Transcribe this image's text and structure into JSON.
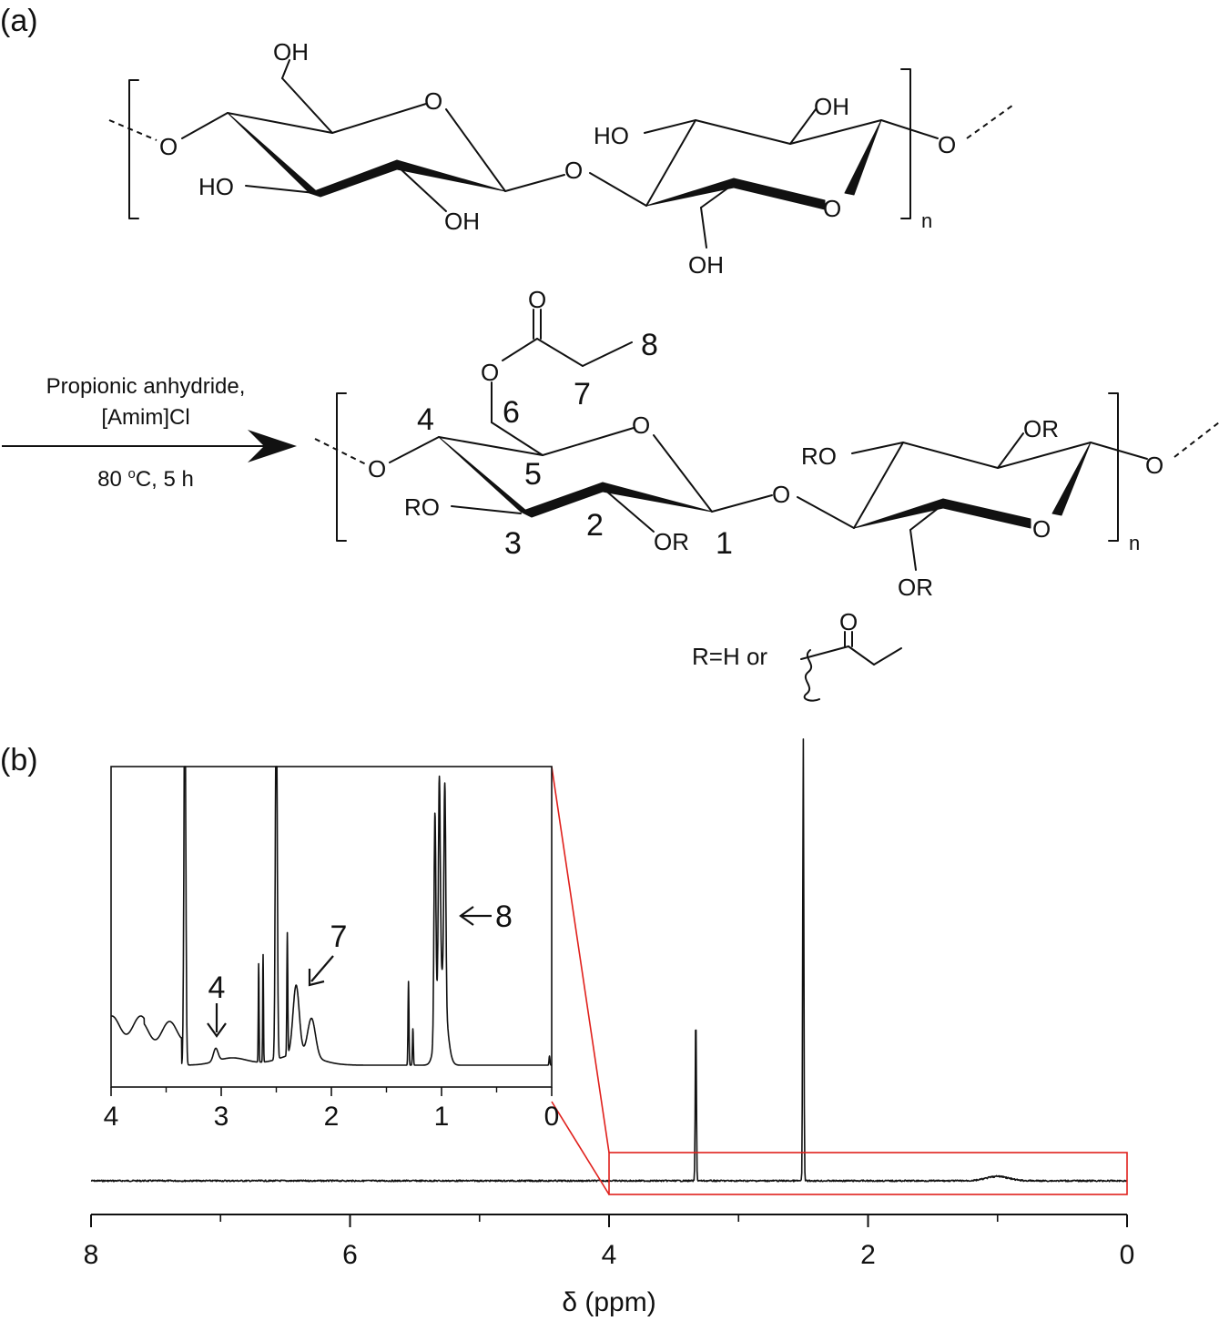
{
  "panel_a": {
    "label": "(a)",
    "reagents": {
      "line1": "Propionic anhydride,",
      "line2": "[Amim]Cl",
      "line3_pre": "80 ",
      "line3_sup": "o",
      "line3_post": "C, 5 h"
    },
    "cellulose_labels": {
      "oh": "OH",
      "ho": "HO",
      "o": "O",
      "n": "n"
    },
    "product_labels": {
      "or": "OR",
      "ro": "RO",
      "o": "O",
      "n": "n",
      "carbon_numbers": [
        "1",
        "2",
        "3",
        "4",
        "5",
        "6",
        "7",
        "8"
      ]
    },
    "r_definition": {
      "text": "R=H or",
      "o": "O"
    }
  },
  "panel_b": {
    "label": "(b)"
  },
  "chart_data": [
    {
      "type": "line",
      "id": "main_spectrum",
      "xlabel": "δ (ppm)",
      "xlim": [
        8,
        0
      ],
      "x_reversed": true,
      "x_ticks": [
        "8",
        "6",
        "4",
        "2",
        "0"
      ],
      "peaks": [
        {
          "shift": 3.33,
          "height": 0.38
        },
        {
          "shift": 2.5,
          "height": 1.0
        },
        {
          "shift": 1.0,
          "height": 0.01
        }
      ],
      "zoom_region": [
        4,
        0
      ]
    },
    {
      "type": "line",
      "id": "inset_spectrum",
      "xlim": [
        4,
        0
      ],
      "x_reversed": true,
      "x_ticks": [
        "4",
        "3",
        "2",
        "1",
        "0"
      ],
      "annotations": [
        {
          "label": "4",
          "shift": 3.05
        },
        {
          "label": "7",
          "shift": 2.3
        },
        {
          "label": "8",
          "shift": 1.0
        }
      ]
    }
  ]
}
